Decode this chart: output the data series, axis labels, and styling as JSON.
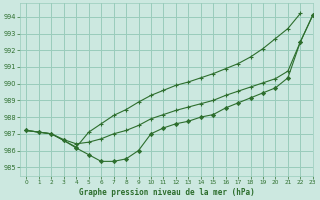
{
  "bg_color": "#cce8e0",
  "grid_color": "#99ccbb",
  "line_color": "#2d6e2d",
  "title": "Graphe pression niveau de la mer (hPa)",
  "xlim": [
    -0.5,
    23
  ],
  "ylim": [
    984.5,
    994.8
  ],
  "xticks": [
    0,
    1,
    2,
    3,
    4,
    5,
    6,
    7,
    8,
    9,
    10,
    11,
    12,
    13,
    14,
    15,
    16,
    17,
    18,
    19,
    20,
    21,
    22,
    23
  ],
  "yticks": [
    985,
    986,
    987,
    988,
    989,
    990,
    991,
    992,
    993,
    994
  ],
  "line1_x": [
    0,
    1,
    2,
    3,
    4,
    5,
    6,
    7,
    8,
    9,
    10,
    11,
    12,
    13,
    14,
    15,
    16,
    17,
    18,
    19,
    20,
    21,
    22,
    23
  ],
  "line1_y": [
    987.2,
    987.1,
    987.0,
    986.6,
    986.15,
    985.75,
    985.35,
    985.35,
    985.5,
    986.0,
    987.0,
    987.35,
    987.6,
    987.75,
    988.0,
    988.15,
    988.55,
    988.85,
    989.15,
    989.45,
    989.75,
    990.35,
    992.5,
    994.1
  ],
  "line2_x": [
    0,
    1,
    2,
    3,
    4,
    5,
    6,
    7,
    8,
    9,
    10,
    11,
    12,
    13,
    14,
    15,
    16,
    17,
    18,
    19,
    20,
    21,
    22,
    23
  ],
  "line2_y": [
    987.2,
    987.1,
    987.0,
    986.65,
    986.4,
    986.5,
    986.7,
    987.0,
    987.2,
    987.5,
    987.9,
    988.15,
    988.4,
    988.6,
    988.8,
    989.0,
    989.3,
    989.55,
    989.8,
    990.05,
    990.3,
    990.75,
    992.5,
    994.1
  ],
  "line3_x": [
    0,
    1,
    2,
    3,
    4,
    5,
    6,
    7,
    8,
    9,
    10,
    11,
    12,
    13,
    14,
    15,
    16,
    17,
    18,
    19,
    20,
    21,
    22,
    23
  ],
  "line3_y": [
    987.2,
    987.1,
    987.0,
    986.6,
    986.2,
    987.1,
    987.6,
    988.1,
    988.45,
    988.9,
    989.3,
    989.6,
    989.9,
    990.1,
    990.35,
    990.6,
    990.9,
    991.2,
    991.6,
    992.1,
    992.7,
    993.3,
    994.2,
    null
  ]
}
